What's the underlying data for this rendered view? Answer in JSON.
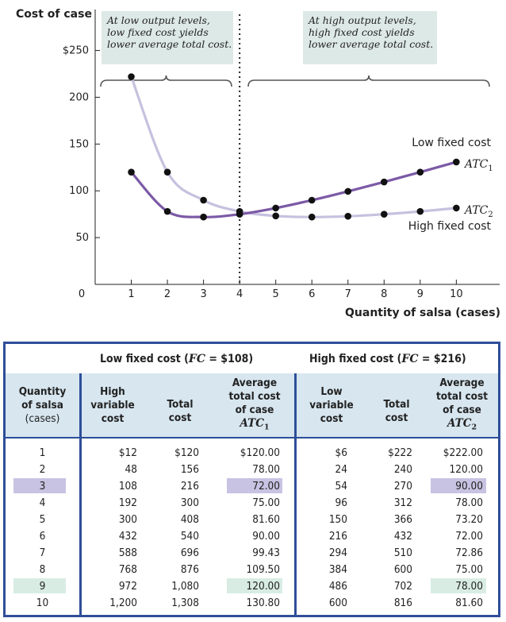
{
  "chart_data": {
    "type": "line",
    "ylabel": "Cost of case",
    "xlabel": "Quantity of salsa (cases)",
    "x_ticks": [
      1,
      2,
      3,
      4,
      5,
      6,
      7,
      8,
      9,
      10
    ],
    "x_tick_labels": [
      "1",
      "2",
      "3",
      "4",
      "5",
      "6",
      "7",
      "8",
      "9",
      "10"
    ],
    "y_ticks": [
      50,
      100,
      150,
      200,
      250
    ],
    "y_tick_labels": [
      "50",
      "100",
      "150",
      "200",
      "$250"
    ],
    "origin_label": "0",
    "xlim": [
      0,
      11.2
    ],
    "ylim": [
      0,
      270
    ],
    "vline_x": 4,
    "series": [
      {
        "name": "ATC1",
        "label": "Low fixed cost",
        "color": "#7b5aa6",
        "x": [
          1,
          2,
          3,
          4,
          5,
          6,
          7,
          8,
          9,
          10
        ],
        "y": [
          120.0,
          78.0,
          72.0,
          75.0,
          81.6,
          90.0,
          99.43,
          109.5,
          120.0,
          130.8
        ]
      },
      {
        "name": "ATC2",
        "label": "High fixed cost",
        "color": "#c7c1df",
        "x": [
          1,
          2,
          3,
          4,
          5,
          6,
          7,
          8,
          9,
          10
        ],
        "y": [
          222.0,
          120.0,
          90.0,
          78.0,
          73.2,
          72.0,
          72.86,
          75.0,
          78.0,
          81.6
        ]
      }
    ],
    "annotations": [
      {
        "lines": [
          "At low output levels,",
          "low fixed cost yields",
          "lower average total cost."
        ]
      },
      {
        "lines": [
          "At high output levels,",
          "high fixed cost yields",
          "lower average total cost."
        ]
      }
    ]
  },
  "table": {
    "group_low": "Low fixed cost (FC = $108)",
    "group_high": "High fixed cost (FC = $216)",
    "headers": {
      "quantity": [
        "Quantity",
        "of salsa",
        "(cases)"
      ],
      "hv": [
        "High",
        "variable",
        "cost"
      ],
      "total1": [
        "Total",
        "cost"
      ],
      "atc1": [
        "Average",
        "total cost",
        "of case",
        "ATC1"
      ],
      "lv": [
        "Low",
        "variable",
        "cost"
      ],
      "total2": [
        "Total",
        "cost"
      ],
      "atc2": [
        "Average",
        "total cost",
        "of case",
        "ATC2"
      ]
    },
    "rows": [
      {
        "q": "1",
        "hv": "$12",
        "t1": "$120",
        "atc1": "$120.00",
        "lv": "$6",
        "t2": "$222",
        "atc2": "$222.00"
      },
      {
        "q": "2",
        "hv": "48",
        "t1": "156",
        "atc1": "78.00",
        "lv": "24",
        "t2": "240",
        "atc2": "120.00"
      },
      {
        "q": "3",
        "hv": "108",
        "t1": "216",
        "atc1": "72.00",
        "lv": "54",
        "t2": "270",
        "atc2": "90.00"
      },
      {
        "q": "4",
        "hv": "192",
        "t1": "300",
        "atc1": "75.00",
        "lv": "96",
        "t2": "312",
        "atc2": "78.00"
      },
      {
        "q": "5",
        "hv": "300",
        "t1": "408",
        "atc1": "81.60",
        "lv": "150",
        "t2": "366",
        "atc2": "73.20"
      },
      {
        "q": "6",
        "hv": "432",
        "t1": "540",
        "atc1": "90.00",
        "lv": "216",
        "t2": "432",
        "atc2": "72.00"
      },
      {
        "q": "7",
        "hv": "588",
        "t1": "696",
        "atc1": "99.43",
        "lv": "294",
        "t2": "510",
        "atc2": "72.86"
      },
      {
        "q": "8",
        "hv": "768",
        "t1": "876",
        "atc1": "109.50",
        "lv": "384",
        "t2": "600",
        "atc2": "75.00"
      },
      {
        "q": "9",
        "hv": "972",
        "t1": "1,080",
        "atc1": "120.00",
        "lv": "486",
        "t2": "702",
        "atc2": "78.00"
      },
      {
        "q": "10",
        "hv": "1,200",
        "t1": "1,308",
        "atc1": "130.80",
        "lv": "600",
        "t2": "816",
        "atc2": "81.60"
      }
    ],
    "highlight_colors": {
      "purple": "#c8c3e2",
      "green": "#d8ece3"
    }
  }
}
